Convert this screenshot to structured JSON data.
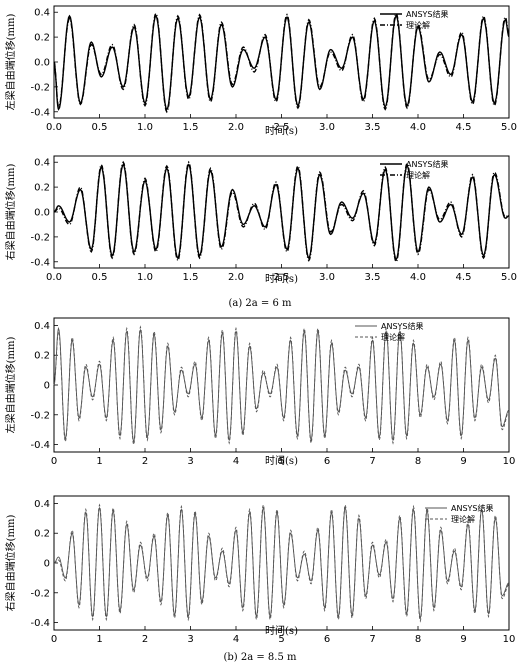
{
  "captions": {
    "a": "(a) 2a = 6 m",
    "b": "(b) 2a = 8.5 m"
  },
  "chart_data": [
    {
      "type": "line",
      "xlabel": "时间(s)",
      "ylabel": "左梁自由端位移(mm)",
      "xlim": [
        0,
        5.0
      ],
      "ylim": [
        -0.45,
        0.45
      ],
      "xticks": [
        "0.0",
        "0.5",
        "1.0",
        "1.5",
        "2.0",
        "2.5",
        "3.0",
        "3.5",
        "4.0",
        "4.5",
        "5.0"
      ],
      "yticks": [
        "-0.4",
        "-0.2",
        "0.0",
        "0.2",
        "0.4"
      ],
      "legend": "top-right",
      "series": [
        {
          "name": "ANSYS结果",
          "style": "solid",
          "color": "#000000",
          "peak_times": [
            0.05,
            0.17,
            0.29,
            0.41,
            0.52,
            0.64,
            0.76,
            0.88,
            1.0,
            1.12,
            1.24,
            1.36,
            1.48,
            1.6,
            1.72,
            1.84,
            1.96,
            2.08,
            2.2,
            2.32,
            2.44,
            2.56,
            2.68,
            2.8,
            2.92,
            3.04,
            3.16,
            3.28,
            3.4,
            3.52,
            3.64,
            3.76,
            3.88,
            4.0,
            4.12,
            4.24,
            4.36,
            4.48,
            4.6,
            4.72,
            4.84,
            4.96
          ],
          "peak_values": [
            -0.38,
            0.37,
            -0.33,
            0.16,
            -0.12,
            0.12,
            -0.2,
            0.28,
            -0.33,
            0.37,
            -0.38,
            0.35,
            -0.28,
            0.36,
            -0.3,
            0.3,
            -0.2,
            0.1,
            -0.05,
            0.2,
            -0.3,
            0.36,
            -0.35,
            0.32,
            -0.22,
            0.1,
            -0.05,
            0.2,
            -0.3,
            0.33,
            -0.36,
            0.37,
            -0.35,
            0.28,
            -0.16,
            0.08,
            -0.1,
            0.22,
            -0.32,
            0.35,
            -0.33,
            0.34
          ]
        },
        {
          "name": "理论解",
          "style": "dashdot",
          "color": "#000000",
          "peak_times": [
            0.05,
            0.17,
            0.29,
            0.41,
            0.52,
            0.64,
            0.76,
            0.88,
            1.0,
            1.12,
            1.24,
            1.36,
            1.48,
            1.6,
            1.72,
            1.84,
            1.96,
            2.08,
            2.2,
            2.32,
            2.44,
            2.56,
            2.68,
            2.8,
            2.92,
            3.04,
            3.16,
            3.28,
            3.4,
            3.52,
            3.64,
            3.76,
            3.88,
            4.0,
            4.12,
            4.24,
            4.36,
            4.48,
            4.6,
            4.72,
            4.84,
            4.96
          ],
          "peak_values": [
            -0.36,
            0.35,
            -0.34,
            0.14,
            -0.1,
            0.14,
            -0.22,
            0.3,
            -0.35,
            0.39,
            -0.4,
            0.37,
            -0.3,
            0.38,
            -0.32,
            0.32,
            -0.18,
            0.12,
            -0.08,
            0.22,
            -0.32,
            0.38,
            -0.37,
            0.34,
            -0.2,
            0.08,
            -0.07,
            0.22,
            -0.32,
            0.35,
            -0.38,
            0.39,
            -0.37,
            0.3,
            -0.14,
            0.06,
            -0.12,
            0.24,
            -0.34,
            0.37,
            -0.35,
            0.36
          ]
        }
      ]
    },
    {
      "type": "line",
      "xlabel": "时间(s)",
      "ylabel": "右梁自由端位移(mm)",
      "xlim": [
        0,
        5.0
      ],
      "ylim": [
        -0.45,
        0.45
      ],
      "xticks": [
        "0.0",
        "0.5",
        "1.0",
        "1.5",
        "2.0",
        "2.5",
        "3.0",
        "3.5",
        "4.0",
        "4.5",
        "5.0"
      ],
      "yticks": [
        "-0.4",
        "-0.2",
        "0.0",
        "0.2",
        "0.4"
      ],
      "legend": "top-right",
      "series": [
        {
          "name": "ANSYS结果",
          "style": "solid",
          "color": "#000000",
          "peak_times": [
            0.05,
            0.17,
            0.29,
            0.41,
            0.52,
            0.64,
            0.76,
            0.88,
            1.0,
            1.12,
            1.24,
            1.36,
            1.48,
            1.6,
            1.72,
            1.84,
            1.96,
            2.08,
            2.2,
            2.32,
            2.44,
            2.56,
            2.68,
            2.8,
            2.92,
            3.04,
            3.16,
            3.28,
            3.4,
            3.52,
            3.64,
            3.76,
            3.88,
            4.0,
            4.12,
            4.24,
            4.36,
            4.48,
            4.6,
            4.72,
            4.84,
            4.96
          ],
          "peak_values": [
            0.05,
            -0.08,
            0.18,
            -0.3,
            0.36,
            -0.35,
            0.38,
            -0.32,
            0.25,
            -0.3,
            0.35,
            -0.37,
            0.38,
            -0.35,
            0.33,
            -0.28,
            0.18,
            -0.1,
            0.05,
            -0.12,
            0.22,
            -0.3,
            0.35,
            -0.37,
            0.3,
            -0.18,
            0.08,
            -0.05,
            0.15,
            -0.25,
            0.34,
            -0.38,
            0.37,
            -0.32,
            0.2,
            -0.08,
            0.06,
            -0.18,
            0.28,
            -0.35,
            0.3,
            -0.05
          ]
        },
        {
          "name": "理论解",
          "style": "dashdot",
          "color": "#000000",
          "peak_times": [
            0.05,
            0.17,
            0.29,
            0.41,
            0.52,
            0.64,
            0.76,
            0.88,
            1.0,
            1.12,
            1.24,
            1.36,
            1.48,
            1.6,
            1.72,
            1.84,
            1.96,
            2.08,
            2.2,
            2.32,
            2.44,
            2.56,
            2.68,
            2.8,
            2.92,
            3.04,
            3.16,
            3.28,
            3.4,
            3.52,
            3.64,
            3.76,
            3.88,
            4.0,
            4.12,
            4.24,
            4.36,
            4.48,
            4.6,
            4.72,
            4.84,
            4.96
          ],
          "peak_values": [
            0.03,
            -0.1,
            0.2,
            -0.32,
            0.38,
            -0.37,
            0.4,
            -0.34,
            0.27,
            -0.32,
            0.37,
            -0.39,
            0.4,
            -0.37,
            0.35,
            -0.3,
            0.16,
            -0.12,
            0.07,
            -0.14,
            0.24,
            -0.32,
            0.37,
            -0.39,
            0.32,
            -0.16,
            0.06,
            -0.07,
            0.17,
            -0.27,
            0.36,
            -0.4,
            0.39,
            -0.34,
            0.18,
            -0.06,
            0.08,
            -0.2,
            0.3,
            -0.37,
            0.32,
            -0.04
          ]
        }
      ]
    },
    {
      "type": "line",
      "xlabel": "时间(s)",
      "ylabel": "左梁自由端位移(mm)",
      "xlim": [
        0,
        10
      ],
      "ylim": [
        -0.45,
        0.45
      ],
      "xticks": [
        "0",
        "1",
        "2",
        "3",
        "4",
        "5",
        "6",
        "7",
        "8",
        "9",
        "10"
      ],
      "yticks": [
        "-0.4",
        "-0.2",
        "0",
        "0.2",
        "0.4"
      ],
      "legend": "top-right",
      "series": [
        {
          "name": "ANSYS结果",
          "style": "solid",
          "color": "#555555",
          "peak_times": [
            0.1,
            0.25,
            0.4,
            0.55,
            0.7,
            0.85,
            1.0,
            1.15,
            1.3,
            1.45,
            1.6,
            1.75,
            1.9,
            2.05,
            2.2,
            2.35,
            2.5,
            2.65,
            2.8,
            2.95,
            3.1,
            3.25,
            3.4,
            3.55,
            3.7,
            3.85,
            4.0,
            4.15,
            4.3,
            4.45,
            4.6,
            4.75,
            4.9,
            5.05,
            5.2,
            5.35,
            5.5,
            5.65,
            5.8,
            5.95,
            6.1,
            6.25,
            6.4,
            6.55,
            6.7,
            6.85,
            7.0,
            7.15,
            7.3,
            7.45,
            7.6,
            7.75,
            7.9,
            8.05,
            8.2,
            8.35,
            8.5,
            8.65,
            8.8,
            8.95,
            9.1,
            9.25,
            9.4,
            9.55,
            9.7,
            9.85
          ],
          "peak_values": [
            0.38,
            -0.36,
            0.3,
            -0.22,
            0.12,
            -0.08,
            0.14,
            -0.22,
            0.3,
            -0.34,
            0.36,
            -0.38,
            0.37,
            -0.35,
            0.34,
            -0.3,
            0.26,
            -0.18,
            0.1,
            -0.06,
            0.14,
            -0.22,
            0.3,
            -0.34,
            0.35,
            -0.37,
            0.36,
            -0.32,
            0.26,
            -0.16,
            0.08,
            -0.06,
            0.12,
            -0.22,
            0.3,
            -0.34,
            0.36,
            -0.37,
            0.36,
            -0.34,
            0.28,
            -0.18,
            0.1,
            -0.06,
            0.12,
            -0.22,
            0.3,
            -0.35,
            0.36,
            -0.37,
            0.36,
            -0.34,
            0.28,
            -0.2,
            0.12,
            -0.08,
            0.14,
            -0.24,
            0.3,
            -0.34,
            0.3,
            -0.22,
            0.12,
            -0.1,
            0.18,
            -0.28
          ]
        },
        {
          "name": "理论解",
          "style": "dashed",
          "color": "#555555",
          "peak_times": [
            0.1,
            0.25,
            0.4,
            0.55,
            0.7,
            0.85,
            1.0,
            1.15,
            1.3,
            1.45,
            1.6,
            1.75,
            1.9,
            2.05,
            2.2,
            2.35,
            2.5,
            2.65,
            2.8,
            2.95,
            3.1,
            3.25,
            3.4,
            3.55,
            3.7,
            3.85,
            4.0,
            4.15,
            4.3,
            4.45,
            4.6,
            4.75,
            4.9,
            5.05,
            5.2,
            5.35,
            5.5,
            5.65,
            5.8,
            5.95,
            6.1,
            6.25,
            6.4,
            6.55,
            6.7,
            6.85,
            7.0,
            7.15,
            7.3,
            7.45,
            7.6,
            7.75,
            7.9,
            8.05,
            8.2,
            8.35,
            8.5,
            8.65,
            8.8,
            8.95,
            9.1,
            9.25,
            9.4,
            9.55,
            9.7,
            9.85
          ],
          "peak_values": [
            0.36,
            -0.38,
            0.32,
            -0.24,
            0.14,
            -0.1,
            0.16,
            -0.24,
            0.32,
            -0.36,
            0.38,
            -0.4,
            0.39,
            -0.37,
            0.36,
            -0.32,
            0.28,
            -0.2,
            0.12,
            -0.08,
            0.16,
            -0.24,
            0.32,
            -0.36,
            0.37,
            -0.39,
            0.38,
            -0.34,
            0.28,
            -0.18,
            0.1,
            -0.08,
            0.14,
            -0.24,
            0.32,
            -0.36,
            0.38,
            -0.39,
            0.38,
            -0.36,
            0.3,
            -0.2,
            0.12,
            -0.08,
            0.14,
            -0.24,
            0.32,
            -0.37,
            0.38,
            -0.39,
            0.38,
            -0.36,
            0.3,
            -0.22,
            0.14,
            -0.1,
            0.16,
            -0.26,
            0.32,
            -0.36,
            0.32,
            -0.24,
            0.14,
            -0.12,
            0.2,
            -0.3
          ]
        }
      ]
    },
    {
      "type": "line",
      "xlabel": "时间(s)",
      "ylabel": "右梁自由端位移(mm)",
      "xlim": [
        0,
        10
      ],
      "ylim": [
        -0.45,
        0.45
      ],
      "xticks": [
        "0",
        "1",
        "2",
        "3",
        "4",
        "5",
        "6",
        "7",
        "8",
        "9",
        "10"
      ],
      "yticks": [
        "-0.4",
        "-0.2",
        "0",
        "0.2",
        "0.4"
      ],
      "legend": "top-right",
      "series": [
        {
          "name": "ANSYS结果",
          "style": "solid",
          "color": "#555555",
          "peak_times": [
            0.1,
            0.25,
            0.4,
            0.55,
            0.7,
            0.85,
            1.0,
            1.15,
            1.3,
            1.45,
            1.6,
            1.75,
            1.9,
            2.05,
            2.2,
            2.35,
            2.5,
            2.65,
            2.8,
            2.95,
            3.1,
            3.25,
            3.4,
            3.55,
            3.7,
            3.85,
            4.0,
            4.15,
            4.3,
            4.45,
            4.6,
            4.75,
            4.9,
            5.05,
            5.2,
            5.35,
            5.5,
            5.65,
            5.8,
            5.95,
            6.1,
            6.25,
            6.4,
            6.55,
            6.7,
            6.85,
            7.0,
            7.15,
            7.3,
            7.45,
            7.6,
            7.75,
            7.9,
            8.05,
            8.2,
            8.35,
            8.5,
            8.65,
            8.8,
            8.95,
            9.1,
            9.25,
            9.4,
            9.55,
            9.7,
            9.85
          ],
          "peak_values": [
            0.04,
            -0.1,
            0.2,
            -0.28,
            0.34,
            -0.36,
            0.37,
            -0.36,
            0.35,
            -0.32,
            0.26,
            -0.18,
            0.12,
            -0.1,
            0.18,
            -0.26,
            0.32,
            -0.35,
            0.36,
            -0.36,
            0.33,
            -0.26,
            0.18,
            -0.1,
            0.08,
            -0.14,
            0.22,
            -0.3,
            0.34,
            -0.36,
            0.37,
            -0.36,
            0.34,
            -0.28,
            0.2,
            -0.1,
            0.06,
            -0.12,
            0.22,
            -0.3,
            0.34,
            -0.36,
            0.37,
            -0.35,
            0.3,
            -0.22,
            0.12,
            -0.08,
            0.14,
            -0.24,
            0.3,
            -0.34,
            0.36,
            -0.37,
            0.35,
            -0.3,
            0.22,
            -0.12,
            0.08,
            -0.16,
            0.26,
            -0.32,
            0.36,
            -0.34,
            0.3,
            -0.22
          ]
        },
        {
          "name": "理论解",
          "style": "dashed",
          "color": "#555555",
          "peak_times": [
            0.1,
            0.25,
            0.4,
            0.55,
            0.7,
            0.85,
            1.0,
            1.15,
            1.3,
            1.45,
            1.6,
            1.75,
            1.9,
            2.05,
            2.2,
            2.35,
            2.5,
            2.65,
            2.8,
            2.95,
            3.1,
            3.25,
            3.4,
            3.55,
            3.7,
            3.85,
            4.0,
            4.15,
            4.3,
            4.45,
            4.6,
            4.75,
            4.9,
            5.05,
            5.2,
            5.35,
            5.5,
            5.65,
            5.8,
            5.95,
            6.1,
            6.25,
            6.4,
            6.55,
            6.7,
            6.85,
            7.0,
            7.15,
            7.3,
            7.45,
            7.6,
            7.75,
            7.9,
            8.05,
            8.2,
            8.35,
            8.5,
            8.65,
            8.8,
            8.95,
            9.1,
            9.25,
            9.4,
            9.55,
            9.7,
            9.85
          ],
          "peak_values": [
            0.02,
            -0.12,
            0.22,
            -0.3,
            0.36,
            -0.38,
            0.39,
            -0.38,
            0.37,
            -0.34,
            0.28,
            -0.2,
            0.14,
            -0.12,
            0.2,
            -0.28,
            0.34,
            -0.37,
            0.38,
            -0.38,
            0.35,
            -0.28,
            0.2,
            -0.12,
            0.1,
            -0.16,
            0.24,
            -0.32,
            0.36,
            -0.38,
            0.39,
            -0.38,
            0.36,
            -0.3,
            0.22,
            -0.12,
            0.08,
            -0.14,
            0.24,
            -0.32,
            0.36,
            -0.38,
            0.39,
            -0.37,
            0.32,
            -0.24,
            0.14,
            -0.1,
            0.16,
            -0.26,
            0.32,
            -0.36,
            0.38,
            -0.39,
            0.37,
            -0.32,
            0.24,
            -0.14,
            0.1,
            -0.18,
            0.28,
            -0.34,
            0.38,
            -0.36,
            0.32,
            -0.24
          ]
        }
      ]
    }
  ]
}
